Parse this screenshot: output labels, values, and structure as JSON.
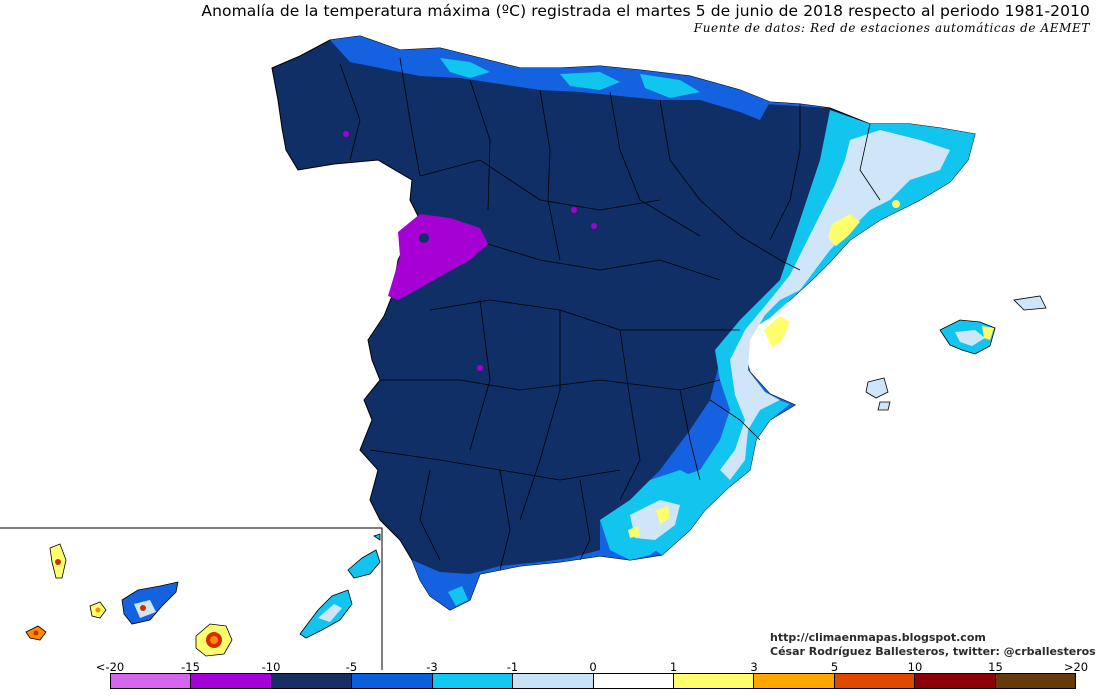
{
  "header": {
    "title": "Anomalía de la temperatura máxima (ºC) registrada el martes 5 de junio de 2018 respecto al periodo 1981-2010",
    "source": "Fuente de datos: Red de estaciones automáticas de AEMET"
  },
  "credits": {
    "website": "http://climaenmapas.blogspot.com",
    "author": "César Rodríguez Ballesteros, twitter: @crballesteros"
  },
  "legend": {
    "labels": [
      "<-20",
      "-15",
      "-10",
      "-5",
      "-3",
      "-1",
      "0",
      "1",
      "3",
      "5",
      "10",
      "15",
      ">20"
    ],
    "colors": [
      "#d466ee",
      "#a200d6",
      "#1a2e63",
      "#0b5fdc",
      "#12c7f2",
      "#c9e2f6",
      "#ffffff",
      "#ffff6e",
      "#ffa600",
      "#e04a00",
      "#8d0008",
      "#64390c"
    ]
  },
  "palette": {
    "deep_navy": "#0f2f66",
    "blue": "#1462e0",
    "cyan": "#12c5ef",
    "pale_blue": "#cfe6f8",
    "white": "#ffffff",
    "yellow": "#ffff6e",
    "purple": "#a600d4",
    "orange": "#ff8c00",
    "red": "#d42a00"
  },
  "map": {
    "region": "Península Ibérica, Baleares y Canarias"
  }
}
